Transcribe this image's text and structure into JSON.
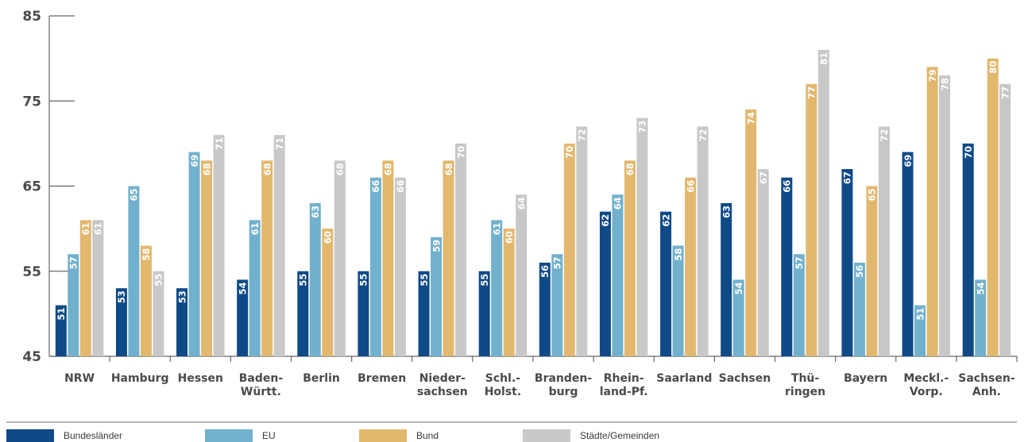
{
  "chart_data": {
    "type": "bar",
    "categories": [
      [
        "NRW"
      ],
      [
        "Hamburg"
      ],
      [
        "Hessen"
      ],
      [
        "Baden-",
        "Württ."
      ],
      [
        "Berlin"
      ],
      [
        "Bremen"
      ],
      [
        "Nieder-",
        "sachsen"
      ],
      [
        "Schl.-",
        "Holst."
      ],
      [
        "Branden-",
        "burg"
      ],
      [
        "Rhein-",
        "land-Pf."
      ],
      [
        "Saarland"
      ],
      [
        "Sachsen"
      ],
      [
        "Thü-",
        "ringen"
      ],
      [
        "Bayern"
      ],
      [
        "Meckl.-",
        "Vorp."
      ],
      [
        "Sachsen-",
        "Anh."
      ]
    ],
    "series": [
      {
        "name": "Bundesländer",
        "color": "#0f4a87",
        "values": [
          51,
          53,
          53,
          54,
          55,
          55,
          55,
          55,
          56,
          62,
          62,
          63,
          66,
          67,
          69,
          70
        ]
      },
      {
        "name": "EU",
        "color": "#72b1cd",
        "values": [
          57,
          65,
          69,
          61,
          63,
          66,
          59,
          61,
          57,
          64,
          58,
          54,
          57,
          56,
          51,
          54
        ]
      },
      {
        "name": "Bund",
        "color": "#e2b86f",
        "values": [
          61,
          58,
          68,
          68,
          60,
          68,
          68,
          60,
          70,
          68,
          66,
          74,
          77,
          65,
          79,
          80
        ]
      },
      {
        "name": "Städte/Gemeinden",
        "color": "#c8c8c8",
        "values": [
          61,
          55,
          71,
          71,
          68,
          66,
          70,
          64,
          72,
          73,
          72,
          67,
          81,
          72,
          78,
          77
        ]
      }
    ],
    "ylim": [
      45,
      85
    ],
    "yticks": [
      "45",
      "55",
      "65",
      "75",
      "85"
    ],
    "grid": false,
    "legend_position": "bottom"
  }
}
